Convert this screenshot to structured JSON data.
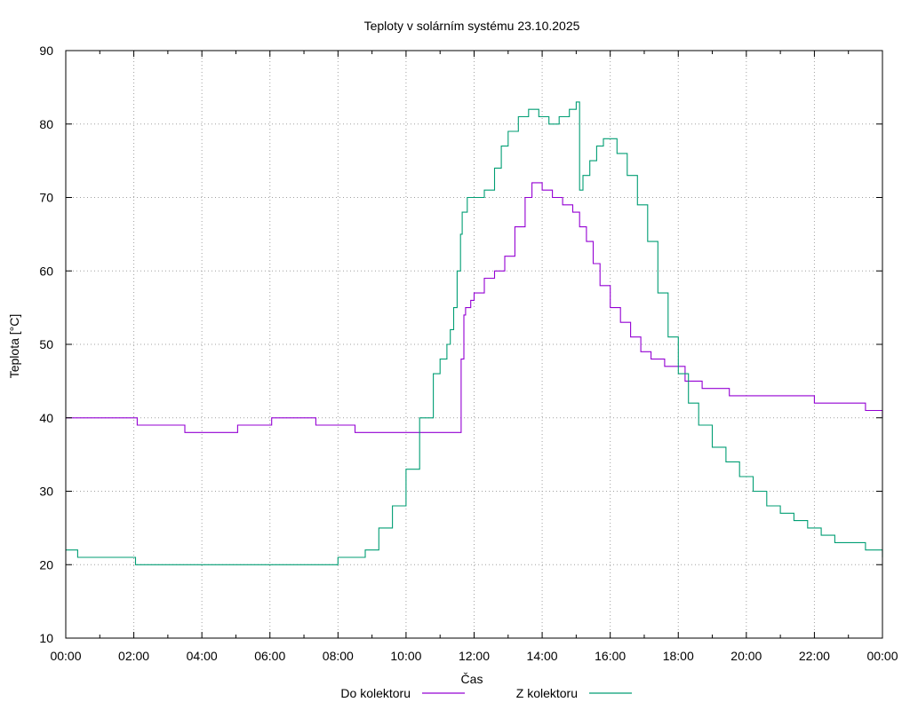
{
  "chart_data": {
    "type": "line",
    "title": "Teploty v solárním systému 23.10.2025",
    "xlabel": "Čas",
    "ylabel": "Teplota [°C]",
    "ylim": [
      10,
      90
    ],
    "xlim_hours": [
      0,
      24
    ],
    "grid": true,
    "legend_position": "bottom-center",
    "y_ticks": [
      "10",
      "20",
      "30",
      "40",
      "50",
      "60",
      "70",
      "80",
      "90"
    ],
    "x_ticks": [
      "00:00",
      "02:00",
      "04:00",
      "06:00",
      "08:00",
      "10:00",
      "12:00",
      "14:00",
      "16:00",
      "18:00",
      "20:00",
      "22:00",
      "00:00"
    ],
    "series": [
      {
        "name": "Do kolektoru",
        "color": "#9400d3",
        "x": [
          0,
          2.05,
          2.1,
          3.5,
          5.05,
          6.05,
          7.35,
          8.4,
          8.5,
          11.6,
          11.62,
          11.7,
          11.75,
          11.9,
          12.0,
          12.3,
          12.6,
          12.9,
          13.2,
          13.5,
          13.7,
          14.0,
          14.3,
          14.6,
          14.9,
          15.1,
          15.3,
          15.5,
          15.7,
          16.0,
          16.3,
          16.6,
          16.9,
          17.2,
          17.6,
          18.2,
          18.7,
          19.5,
          22.0,
          23.5,
          24.0
        ],
        "values": [
          40,
          40,
          39,
          38,
          39,
          40,
          39,
          39,
          38,
          38,
          48,
          54,
          55,
          56,
          57,
          59,
          60,
          62,
          66,
          70,
          72,
          71,
          70,
          69,
          68,
          66,
          64,
          61,
          58,
          55,
          53,
          51,
          49,
          48,
          47,
          45,
          44,
          43,
          42,
          41,
          40
        ]
      },
      {
        "name": "Z kolektoru",
        "color": "#009e73",
        "x": [
          0,
          0.35,
          2.0,
          2.05,
          7.9,
          8.0,
          8.8,
          9.2,
          9.6,
          10.0,
          10.4,
          10.8,
          11.0,
          11.2,
          11.3,
          11.4,
          11.5,
          11.6,
          11.65,
          11.8,
          12.0,
          12.3,
          12.6,
          12.8,
          13.0,
          13.3,
          13.6,
          13.9,
          14.2,
          14.5,
          14.8,
          15.0,
          15.1,
          15.2,
          15.4,
          15.6,
          15.8,
          16.0,
          16.2,
          16.5,
          16.8,
          17.1,
          17.4,
          17.7,
          18.0,
          18.3,
          18.6,
          19.0,
          19.4,
          19.8,
          20.2,
          20.6,
          21.0,
          21.4,
          21.8,
          22.2,
          22.6,
          23.0,
          23.5,
          24.0
        ],
        "values": [
          22,
          21,
          21,
          20,
          20,
          21,
          22,
          25,
          28,
          33,
          40,
          46,
          48,
          50,
          52,
          55,
          60,
          65,
          68,
          70,
          70,
          71,
          74,
          77,
          79,
          81,
          82,
          81,
          80,
          81,
          82,
          83,
          71,
          73,
          75,
          77,
          78,
          78,
          76,
          73,
          69,
          64,
          57,
          51,
          46,
          42,
          39,
          36,
          34,
          32,
          30,
          28,
          27,
          26,
          25,
          24,
          23,
          23,
          22,
          21
        ]
      }
    ]
  }
}
